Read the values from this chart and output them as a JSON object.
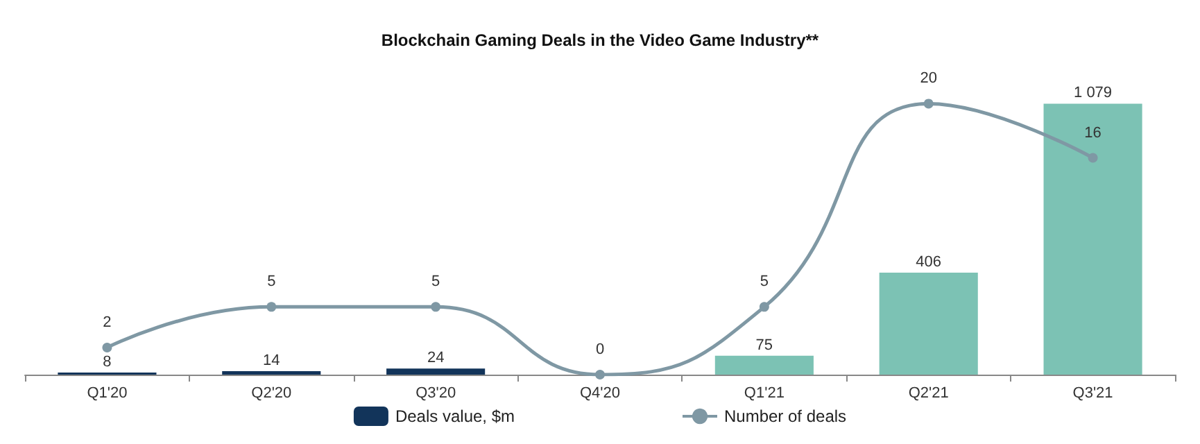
{
  "chart_data": {
    "type": "bar",
    "title": "Blockchain Gaming Deals in the Video Game Industry**",
    "categories": [
      "Q1'20",
      "Q2'20",
      "Q3'20",
      "Q4'20",
      "Q1'21",
      "Q2'21",
      "Q3'21"
    ],
    "series": [
      {
        "name": "Deals value, $m",
        "type": "bar",
        "color": "#12345a",
        "colors": [
          "#12345a",
          "#12345a",
          "#12345a",
          "#12345a",
          "#7cc2b4",
          "#7cc2b4",
          "#7cc2b4"
        ],
        "values": [
          8,
          14,
          24,
          null,
          75,
          406,
          1079
        ],
        "value_labels": [
          "8",
          "14",
          "24",
          null,
          "75",
          "406",
          "1 079"
        ]
      },
      {
        "name": "Number of deals",
        "type": "line",
        "axis": "y2",
        "color": "#7f98a4",
        "values": [
          2,
          5,
          5,
          0,
          5,
          20,
          16
        ]
      }
    ],
    "data_labels": true,
    "legend": "bottom",
    "marker": "circle",
    "line_style": "solid",
    "grid": false,
    "tick_labels": "x"
  }
}
